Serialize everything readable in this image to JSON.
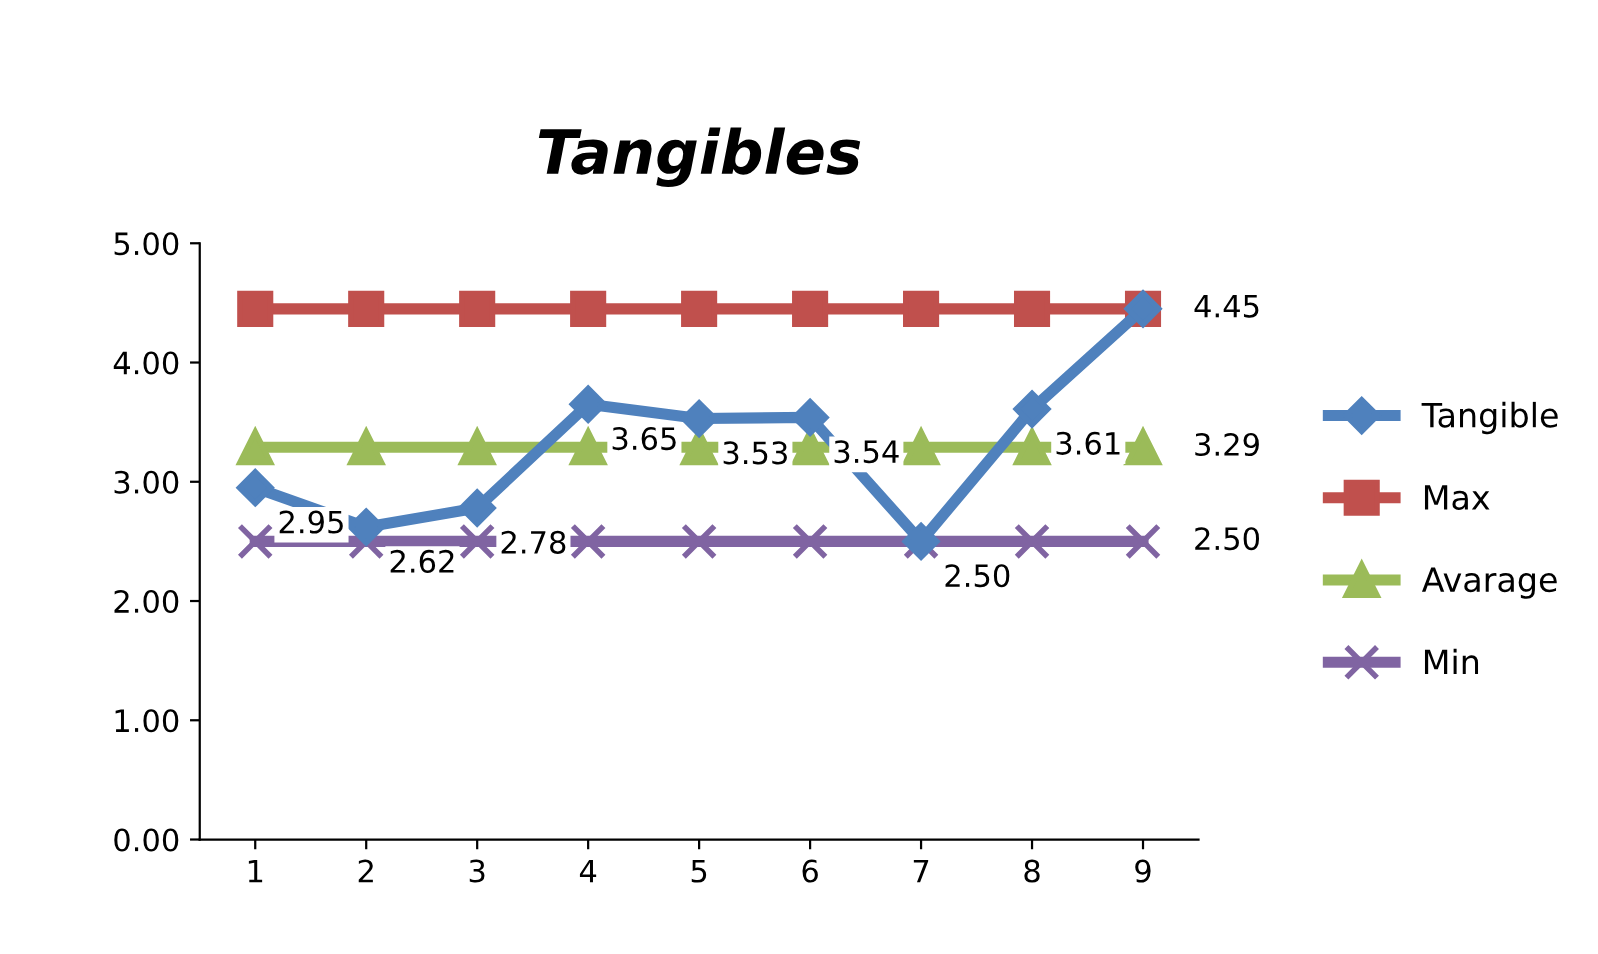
{
  "chart_data": {
    "type": "line",
    "title": "Tangibles",
    "categories": [
      "1",
      "2",
      "3",
      "4",
      "5",
      "6",
      "7",
      "8",
      "9"
    ],
    "ylim": [
      0,
      5
    ],
    "yticks": [
      {
        "value": 0,
        "label": "0.00"
      },
      {
        "value": 1,
        "label": "1.00"
      },
      {
        "value": 2,
        "label": "2.00"
      },
      {
        "value": 3,
        "label": "3.00"
      },
      {
        "value": 4,
        "label": "4.00"
      },
      {
        "value": 5,
        "label": "5.00"
      }
    ],
    "grid": false,
    "legend": "right",
    "line_style": "solid",
    "series": [
      {
        "name": "Tangible",
        "color": "#4f81bd",
        "marker": "diamond",
        "values": [
          2.95,
          2.62,
          2.78,
          3.65,
          3.53,
          3.54,
          2.5,
          3.61,
          4.45
        ],
        "value_labels": [
          "2.95",
          "2.62",
          "2.78",
          "3.65",
          "3.53",
          "3.54",
          "2.50",
          "3.61",
          null
        ]
      },
      {
        "name": "Max",
        "color": "#c0504d",
        "marker": "square",
        "values": [
          4.45,
          4.45,
          4.45,
          4.45,
          4.45,
          4.45,
          4.45,
          4.45,
          4.45
        ],
        "value_labels": [
          null,
          null,
          null,
          null,
          null,
          null,
          null,
          null,
          "4.45"
        ]
      },
      {
        "name": "Avarage",
        "color": "#9bbb59",
        "marker": "triangle",
        "values": [
          3.29,
          3.29,
          3.29,
          3.29,
          3.29,
          3.29,
          3.29,
          3.29,
          3.29
        ],
        "value_labels": [
          null,
          null,
          null,
          null,
          null,
          null,
          null,
          null,
          "3.29"
        ]
      },
      {
        "name": "Min",
        "color": "#8064a2",
        "marker": "cross",
        "values": [
          2.5,
          2.5,
          2.5,
          2.5,
          2.5,
          2.5,
          2.5,
          2.5,
          2.5
        ],
        "value_labels": [
          null,
          null,
          null,
          null,
          null,
          null,
          null,
          null,
          "2.50"
        ]
      }
    ]
  }
}
